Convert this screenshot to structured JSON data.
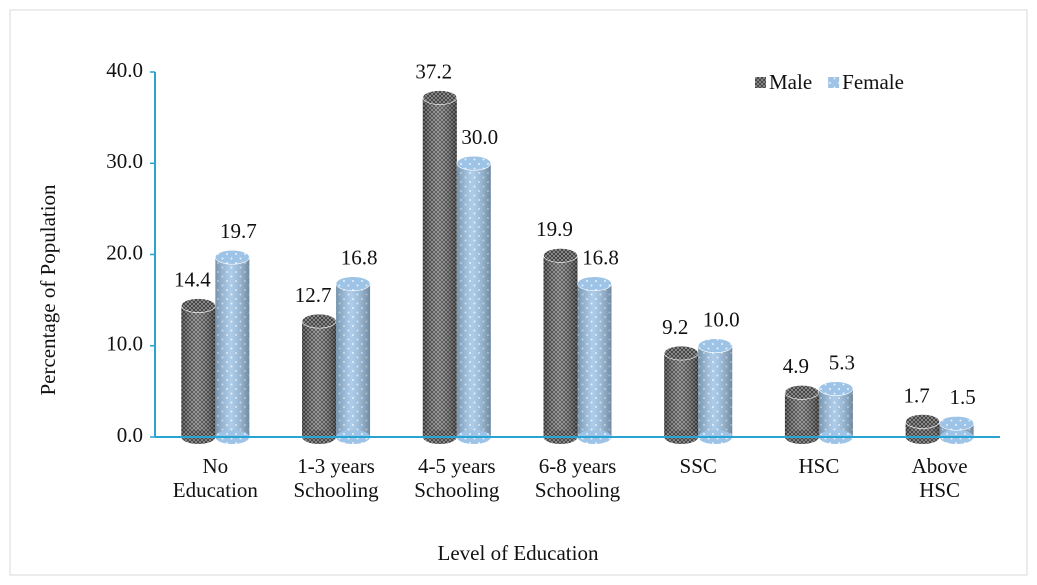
{
  "chart_data": {
    "type": "bar",
    "xlabel": "Level of Education",
    "ylabel": "Percentage of Population",
    "categories": [
      [
        "No",
        "Education"
      ],
      [
        "1-3 years",
        "Schooling"
      ],
      [
        "4-5 years",
        "Schooling"
      ],
      [
        "6-8 years",
        "Schooling"
      ],
      [
        "SSC"
      ],
      [
        "HSC"
      ],
      [
        "Above",
        "HSC"
      ]
    ],
    "series": [
      {
        "name": "Male",
        "color": "#8c8c8c",
        "values": [
          14.4,
          12.7,
          37.2,
          19.9,
          9.2,
          4.9,
          1.7
        ],
        "value_labels": [
          "14.4",
          "12.7",
          "37.2",
          "19.9",
          "9.2",
          "4.9",
          "1.7"
        ]
      },
      {
        "name": "Female",
        "color": "#9dc3e6",
        "values": [
          19.7,
          16.8,
          30.0,
          16.8,
          10.0,
          5.3,
          1.5
        ],
        "value_labels": [
          "19.7",
          "16.8",
          "30.0",
          "16.8",
          "10.0",
          "5.3",
          "1.5"
        ]
      }
    ],
    "ylim": [
      0,
      40
    ],
    "yticks": [
      {
        "value": 0,
        "label": "0.0"
      },
      {
        "value": 10,
        "label": "10.0"
      },
      {
        "value": 20,
        "label": "20.0"
      },
      {
        "value": 30,
        "label": "30.0"
      },
      {
        "value": 40,
        "label": "40.0"
      }
    ],
    "legend": "upper right"
  }
}
